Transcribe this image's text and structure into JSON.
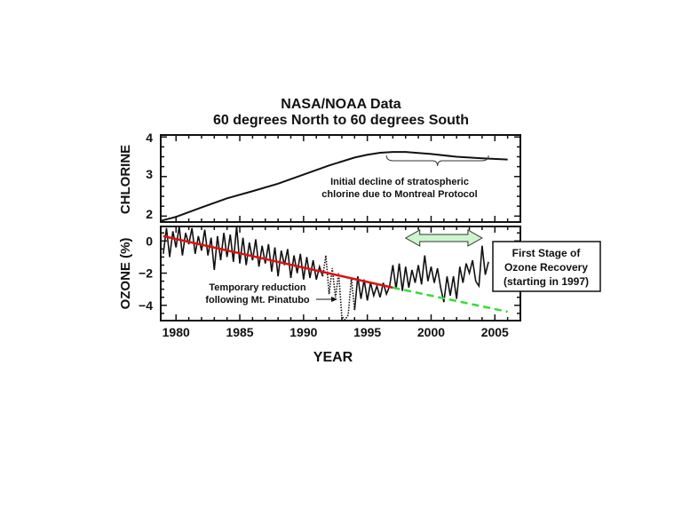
{
  "chart_data": [
    {
      "type": "line",
      "title": [
        "NASA/NOAA Data",
        "60 degrees North to 60 degrees South"
      ],
      "ylabel": "CHLORINE",
      "ylim": [
        1.85,
        4.05
      ],
      "yticks": [
        "2",
        "3",
        "4"
      ],
      "xlim": [
        1978.8,
        2007
      ],
      "series": [
        {
          "points": [
            [
              1978.8,
              1.88
            ],
            [
              1980,
              1.98
            ],
            [
              1982,
              2.22
            ],
            [
              1984,
              2.45
            ],
            [
              1986,
              2.63
            ],
            [
              1988,
              2.82
            ],
            [
              1990,
              3.05
            ],
            [
              1992,
              3.28
            ],
            [
              1994,
              3.48
            ],
            [
              1995,
              3.55
            ],
            [
              1996,
              3.6
            ],
            [
              1997,
              3.62
            ],
            [
              1998,
              3.62
            ],
            [
              2000,
              3.57
            ],
            [
              2002,
              3.5
            ],
            [
              2004,
              3.46
            ],
            [
              2006,
              3.43
            ]
          ]
        }
      ],
      "annotation": {
        "lines": [
          "Initial decline of stratospheric",
          "chlorine due to Montreal Protocol"
        ],
        "brace_from": 1996.5,
        "brace_to": 2004.5
      }
    },
    {
      "type": "line",
      "ylabel": "OZONE (%)",
      "xlabel": "YEAR",
      "ylim": [
        -4.95,
        0.9
      ],
      "xlim": [
        1978.8,
        2007
      ],
      "yticks": [
        "0",
        "−2",
        "−4"
      ],
      "yticks_values": [
        0,
        -2,
        -4
      ],
      "xticks": [
        "1980",
        "1985",
        "1990",
        "1995",
        "2000",
        "2005"
      ],
      "xticks_values": [
        1980,
        1985,
        1990,
        1995,
        2000,
        2005
      ],
      "series": [
        {
          "style": "solid",
          "color": "#111111",
          "points": [
            [
              1979,
              -0.8
            ],
            [
              1979.25,
              0.8
            ],
            [
              1979.5,
              -1.0
            ],
            [
              1979.75,
              0.6
            ],
            [
              1980,
              -0.4
            ],
            [
              1980.25,
              0.9
            ],
            [
              1980.5,
              -0.9
            ],
            [
              1980.75,
              0.5
            ],
            [
              1981,
              -0.2
            ],
            [
              1981.25,
              0.8
            ],
            [
              1981.5,
              -0.8
            ],
            [
              1981.75,
              0.3
            ],
            [
              1982,
              -0.6
            ],
            [
              1982.25,
              0.7
            ],
            [
              1982.5,
              -0.9
            ],
            [
              1982.75,
              0.2
            ],
            [
              1983,
              -1.8
            ],
            [
              1983.25,
              0.3
            ],
            [
              1983.5,
              -1.2
            ],
            [
              1983.75,
              0.5
            ],
            [
              1984,
              -1.0
            ],
            [
              1984.25,
              0.4
            ],
            [
              1984.5,
              -1.3
            ],
            [
              1984.75,
              0.9
            ],
            [
              1985,
              -1.4
            ],
            [
              1985.25,
              0.2
            ],
            [
              1985.5,
              -1.5
            ],
            [
              1985.75,
              -0.1
            ],
            [
              1986,
              -1.2
            ],
            [
              1986.25,
              0.1
            ],
            [
              1986.5,
              -1.6
            ],
            [
              1986.75,
              -0.3
            ],
            [
              1987,
              -1.4
            ],
            [
              1987.25,
              -0.2
            ],
            [
              1987.5,
              -1.9
            ],
            [
              1987.75,
              -0.4
            ],
            [
              1988,
              -2.2
            ],
            [
              1988.25,
              -0.6
            ],
            [
              1988.5,
              -1.5
            ],
            [
              1988.75,
              -0.5
            ],
            [
              1989,
              -2.3
            ],
            [
              1989.25,
              -0.9
            ],
            [
              1989.5,
              -2.0
            ],
            [
              1989.75,
              -0.8
            ],
            [
              1990,
              -2.4
            ],
            [
              1990.25,
              -1.0
            ],
            [
              1990.5,
              -2.3
            ],
            [
              1990.75,
              -1.2
            ],
            [
              1991,
              -2.4
            ],
            [
              1991.25,
              -1.6
            ],
            [
              1991.5,
              -2.2
            ]
          ]
        },
        {
          "style": "dotted",
          "color": "#111111",
          "points": [
            [
              1991.5,
              -2.2
            ],
            [
              1991.75,
              -0.9
            ],
            [
              1992,
              -3.3
            ],
            [
              1992.25,
              -1.7
            ],
            [
              1992.5,
              -3.5
            ],
            [
              1992.75,
              -2.0
            ],
            [
              1993,
              -4.7
            ],
            [
              1993.25,
              -4.9
            ],
            [
              1993.5,
              -4.6
            ],
            [
              1993.75,
              -2.3
            ],
            [
              1994,
              -4.3
            ]
          ]
        },
        {
          "style": "solid",
          "color": "#111111",
          "points": [
            [
              1994,
              -4.3
            ],
            [
              1994.25,
              -2.2
            ],
            [
              1994.5,
              -3.6
            ],
            [
              1994.75,
              -2.4
            ],
            [
              1995,
              -3.7
            ],
            [
              1995.25,
              -2.6
            ],
            [
              1995.5,
              -3.4
            ],
            [
              1995.75,
              -2.8
            ],
            [
              1996,
              -3.5
            ],
            [
              1996.25,
              -2.6
            ],
            [
              1996.5,
              -3.3
            ],
            [
              1996.75,
              -2.8
            ],
            [
              1997,
              -1.5
            ],
            [
              1997.25,
              -3.0
            ],
            [
              1997.5,
              -1.4
            ],
            [
              1997.75,
              -3.1
            ],
            [
              1998,
              -1.6
            ],
            [
              1998.25,
              -2.9
            ],
            [
              1998.5,
              -1.8
            ],
            [
              1998.75,
              -2.6
            ],
            [
              1999,
              -1.5
            ],
            [
              1999.25,
              -2.7
            ],
            [
              1999.5,
              -0.9
            ],
            [
              1999.75,
              -2.5
            ],
            [
              2000,
              -1.6
            ],
            [
              2000.25,
              -2.6
            ],
            [
              2000.5,
              -1.7
            ],
            [
              2000.75,
              -2.9
            ],
            [
              2001,
              -3.8
            ],
            [
              2001.25,
              -2.2
            ],
            [
              2001.5,
              -3.4
            ],
            [
              2001.75,
              -2.2
            ],
            [
              2002,
              -3.6
            ],
            [
              2002.25,
              -1.6
            ],
            [
              2002.5,
              -2.6
            ],
            [
              2002.75,
              -1.4
            ],
            [
              2003,
              -2.0
            ],
            [
              2003.25,
              -1.2
            ],
            [
              2003.5,
              -2.5
            ],
            [
              2003.75,
              -2.8
            ],
            [
              2004,
              -0.3
            ],
            [
              2004.25,
              -2.1
            ],
            [
              2004.5,
              -1.3
            ]
          ]
        },
        {
          "style": "trend",
          "color": "#dd1111",
          "points": [
            [
              1979,
              0.3
            ],
            [
              1997,
              -2.9
            ]
          ]
        },
        {
          "style": "dashed",
          "color": "#33dd33",
          "points": [
            [
              1997,
              -2.9
            ],
            [
              2006,
              -4.4
            ]
          ]
        }
      ],
      "annotations": {
        "pinatubo": [
          "Temporary reduction",
          "following Mt. Pinatubo"
        ],
        "recovery_box": [
          "First Stage of",
          "Ozone Recovery",
          "(starting in 1997)"
        ],
        "recovery_arrow": {
          "from": 1998,
          "to": 2004,
          "fill": "#ccf5cc"
        }
      }
    }
  ]
}
